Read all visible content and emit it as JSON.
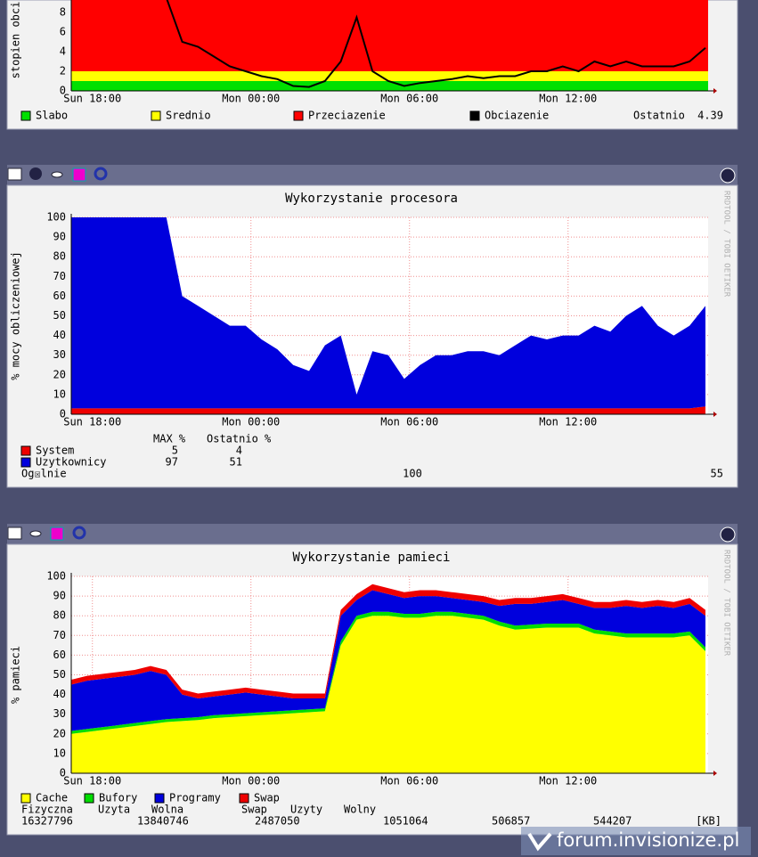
{
  "chart_data": [
    {
      "type": "line",
      "ylabel": "stopien obci",
      "x": [
        -0.8,
        -0.2,
        0.4,
        1.0,
        1.6,
        2.2,
        2.8,
        3.4,
        4.0,
        4.6,
        5.2,
        5.8,
        6.4,
        7.0,
        7.6,
        8.2,
        8.8,
        9.4,
        10.0,
        10.6,
        11.2,
        11.8,
        12.4,
        13.0,
        13.6,
        14.2,
        14.8,
        15.4,
        16.0,
        16.6,
        17.2,
        17.8,
        18.4,
        19.0,
        19.6,
        20.2,
        20.8,
        21.4,
        22.0,
        22.6,
        23.2
      ],
      "bands": [
        {
          "name": "Slabo",
          "color": "#00e000",
          "from": 0,
          "to": 1
        },
        {
          "name": "Srednio",
          "color": "#ffff00",
          "from": 1,
          "to": 2
        },
        {
          "name": "Przeciazenie",
          "color": "#ff0000",
          "from": 2,
          "to": null
        }
      ],
      "series": [
        {
          "name": "Obciazenie",
          "color": "#000000",
          "values": [
            null,
            null,
            null,
            null,
            null,
            null,
            9.5,
            5,
            4.5,
            3.5,
            2.5,
            2,
            1.5,
            1.2,
            0.5,
            0.4,
            1,
            3,
            7.5,
            2,
            1,
            0.5,
            0.8,
            1,
            1.2,
            1.5,
            1.3,
            1.5,
            1.5,
            2,
            2,
            2.5,
            2,
            3,
            2.5,
            3,
            2.5,
            2.5,
            2.5,
            3,
            4.39
          ]
        }
      ],
      "last_label": "Ostatnio",
      "xlim": [
        -0.8,
        23.3
      ],
      "xticks": [
        {
          "value": 0,
          "label": "Sun 18:00"
        },
        {
          "value": 6,
          "label": "Mon 00:00"
        },
        {
          "value": 12,
          "label": "Mon 06:00"
        },
        {
          "value": 18,
          "label": "Mon 12:00"
        }
      ],
      "ylim": [
        0,
        10
      ],
      "yticks": [
        0,
        2,
        4,
        6,
        8
      ],
      "grid": false
    },
    {
      "type": "area",
      "title": "Wykorzystanie procesora",
      "ylabel": "% mocy obliczeniowej",
      "credit": "RRDTOOL / TOBI OETIKER",
      "x": [
        -0.8,
        -0.2,
        0.4,
        1.0,
        1.6,
        2.2,
        2.8,
        3.4,
        4.0,
        4.6,
        5.2,
        5.8,
        6.4,
        7.0,
        7.6,
        8.2,
        8.8,
        9.4,
        10.0,
        10.6,
        11.2,
        11.8,
        12.4,
        13.0,
        13.6,
        14.2,
        14.8,
        15.4,
        16.0,
        16.6,
        17.2,
        17.8,
        18.4,
        19.0,
        19.6,
        20.2,
        20.8,
        21.4,
        22.0,
        22.6,
        23.2
      ],
      "series": [
        {
          "name": "System",
          "color": "#ee0000",
          "max": 5,
          "last": 4,
          "values": [
            3,
            3,
            3,
            3,
            3,
            3,
            3,
            3,
            3,
            3,
            3,
            3,
            3,
            3,
            3,
            3,
            3,
            3,
            3,
            3,
            3,
            3,
            3,
            3,
            3,
            3,
            3,
            3,
            3,
            3,
            3,
            3,
            3,
            3,
            3,
            3,
            3,
            3,
            3,
            3,
            4
          ]
        },
        {
          "name": "Uzytkownicy",
          "color": "#0000dd",
          "max": 97,
          "last": 51,
          "values": [
            97,
            97,
            97,
            97,
            97,
            97,
            97,
            57,
            52,
            47,
            42,
            42,
            35,
            30,
            22,
            19,
            32,
            37,
            7,
            29,
            27,
            15,
            22,
            27,
            27,
            29,
            29,
            27,
            32,
            37,
            35,
            37,
            37,
            42,
            39,
            47,
            52,
            42,
            37,
            42,
            51
          ]
        }
      ],
      "stats_headers": [
        "MAX %",
        "Ostatnio %"
      ],
      "total": {
        "name": "Og☒lnie",
        "max": 100,
        "last": 55
      },
      "xlim": [
        -0.8,
        23.3
      ],
      "xticks": [
        {
          "value": 0,
          "label": "Sun 18:00"
        },
        {
          "value": 6,
          "label": "Mon 00:00"
        },
        {
          "value": 12,
          "label": "Mon 06:00"
        },
        {
          "value": 18,
          "label": "Mon 12:00"
        }
      ],
      "ylim": [
        0,
        100
      ],
      "yticks": [
        0,
        10,
        20,
        30,
        40,
        50,
        60,
        70,
        80,
        90,
        100
      ],
      "grid": true
    },
    {
      "type": "area",
      "title": "Wykorzystanie pamieci",
      "ylabel": "% pamieci",
      "credit": "RRDTOOL / TOBI OETIKER",
      "x": [
        -0.8,
        -0.2,
        0.4,
        1.0,
        1.6,
        2.2,
        2.8,
        3.4,
        4.0,
        4.6,
        5.2,
        5.8,
        6.4,
        7.0,
        7.6,
        8.2,
        8.8,
        9.4,
        10.0,
        10.6,
        11.2,
        11.8,
        12.4,
        13.0,
        13.6,
        14.2,
        14.8,
        15.4,
        16.0,
        16.6,
        17.2,
        17.8,
        18.4,
        19.0,
        19.6,
        20.2,
        20.8,
        21.4,
        22.0,
        22.6,
        23.2
      ],
      "series": [
        {
          "name": "Cache",
          "color": "#ffff00",
          "values": [
            20,
            21,
            22,
            23,
            24,
            25,
            26,
            26.5,
            27,
            28,
            28.5,
            29,
            29.5,
            30,
            30.5,
            31,
            31.5,
            65,
            78,
            80,
            80,
            79,
            79,
            80,
            80,
            79,
            78,
            75,
            73,
            73.5,
            74,
            74,
            74,
            71,
            70,
            69,
            69,
            69,
            69,
            70,
            62
          ]
        },
        {
          "name": "Bufory",
          "color": "#00dd00",
          "values": [
            1.5,
            1.5,
            1.5,
            1.5,
            1.5,
            1.5,
            1.5,
            1.5,
            1.5,
            1.5,
            1.5,
            1.5,
            1.5,
            1.5,
            1.5,
            1.5,
            1.5,
            2,
            2,
            2,
            2,
            2,
            2,
            2,
            2,
            2,
            2,
            2,
            2,
            2,
            2,
            2,
            2,
            2,
            2,
            2,
            2,
            2,
            2,
            2,
            2
          ]
        },
        {
          "name": "Programy",
          "color": "#0000dd",
          "values": [
            23.5,
            24.5,
            24.5,
            24.5,
            24.5,
            25.5,
            22.5,
            12,
            9.5,
            9.5,
            10,
            10.5,
            9,
            7.5,
            6,
            5.5,
            5,
            13,
            8,
            11,
            9,
            8,
            9,
            8,
            7,
            7,
            7,
            8,
            11,
            10.5,
            11,
            12,
            10,
            11,
            12,
            14,
            13,
            14,
            13,
            14,
            16
          ]
        },
        {
          "name": "Swap",
          "color": "#ee0000",
          "values": [
            2.5,
            2.5,
            2.5,
            2.5,
            2.5,
            2.5,
            2.5,
            2.5,
            2.5,
            2.5,
            2.5,
            2.5,
            2.5,
            2.5,
            2.5,
            2.5,
            2.5,
            3,
            3,
            3,
            3,
            3,
            3,
            3,
            3,
            3,
            3,
            3,
            3,
            3,
            3,
            3,
            3,
            3,
            3,
            3,
            3,
            3,
            3,
            3,
            3
          ]
        }
      ],
      "xlim": [
        -0.8,
        23.3
      ],
      "xticks": [
        {
          "value": 0,
          "label": "Sun 18:00"
        },
        {
          "value": 6,
          "label": "Mon 00:00"
        },
        {
          "value": 12,
          "label": "Mon 06:00"
        },
        {
          "value": 18,
          "label": "Mon 12:00"
        }
      ],
      "ylim": [
        0,
        100
      ],
      "yticks": [
        0,
        10,
        20,
        30,
        40,
        50,
        60,
        70,
        80,
        90,
        100
      ],
      "grid": true
    }
  ],
  "memory_table": {
    "headers": [
      "Fizyczna",
      "Uzyta",
      "Wolna",
      "Swap",
      "Uzyty",
      "Wolny"
    ],
    "values": [
      16327796,
      13840746,
      2487050,
      1051064,
      506857,
      544207
    ],
    "unit": "[KB]"
  },
  "watermark": "forum.invisionize.pl"
}
